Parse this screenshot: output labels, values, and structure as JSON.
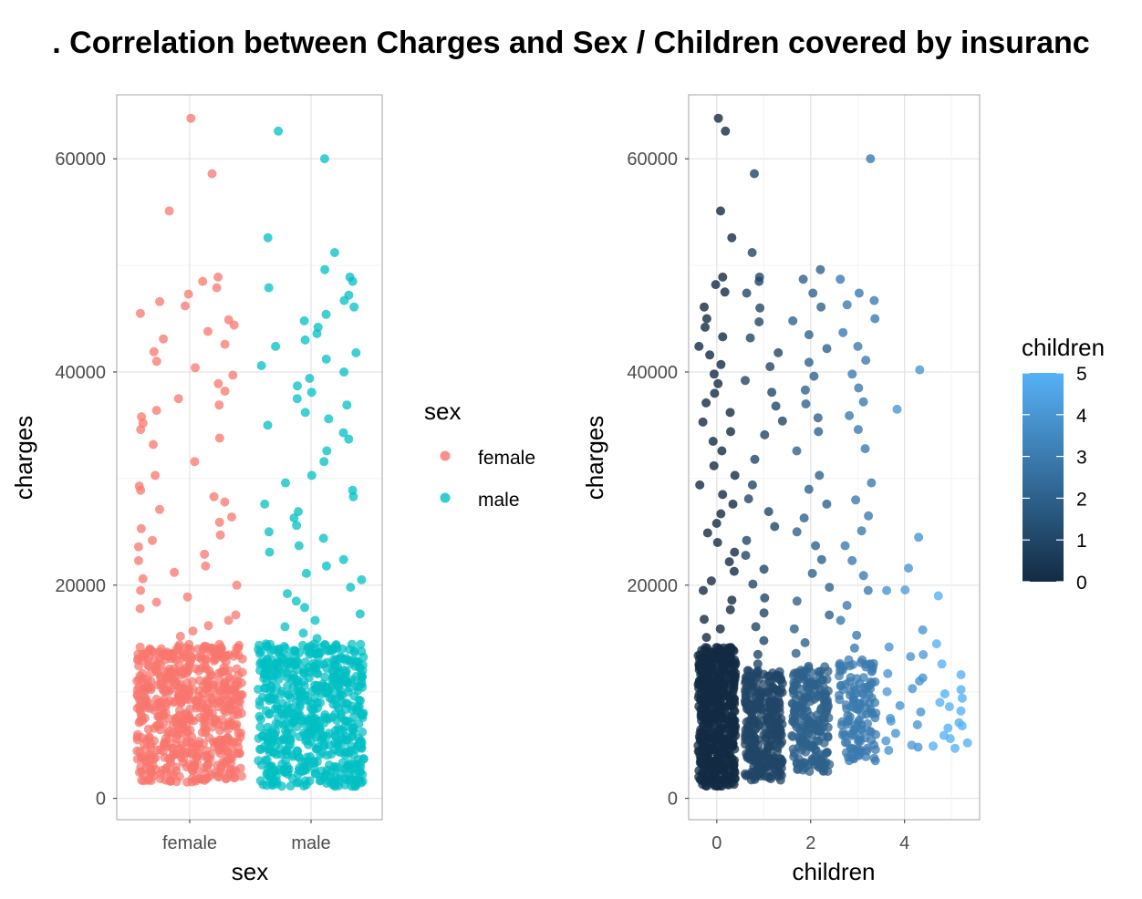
{
  "title": ". Correlation between Charges and Sex / Children covered by insuranc",
  "colors": {
    "female": "#F8766D",
    "male": "#00BFC4",
    "children_low": "#132B43",
    "children_high": "#56B1F7",
    "grid": "#EBEBEB",
    "panel_border": "#B3B3B3"
  },
  "chart_data": [
    {
      "type": "scatter",
      "jitter": true,
      "xlabel": "sex",
      "ylabel": "charges",
      "categories": [
        "female",
        "male"
      ],
      "ylim": [
        -2000,
        66000
      ],
      "y_ticks": [
        0,
        20000,
        40000,
        60000
      ],
      "y_tick_labels": [
        "0",
        "20000",
        "40000",
        "60000"
      ],
      "legend": {
        "title": "sex",
        "position": "right",
        "entries": [
          "female",
          "male"
        ]
      },
      "grid": true,
      "series": [
        {
          "name": "female",
          "color": "#F8766D",
          "count": 662,
          "dense_range": [
            1500,
            14500
          ],
          "outliers": [
            63800,
            58600,
            55100,
            48900,
            48500,
            47900,
            47300,
            46600,
            46200,
            45500,
            44900,
            44400,
            43800,
            43100,
            42600,
            41900,
            41000,
            40400,
            39700,
            38900,
            38200,
            37500,
            36900,
            36400,
            35800,
            35200,
            34600,
            33800,
            33200,
            31600,
            30300,
            29300,
            28900,
            28300,
            27800,
            27100,
            26400,
            25900,
            25300,
            24700,
            24200,
            23600,
            22900,
            22300,
            21800,
            21200,
            20600,
            20000,
            19500,
            18900,
            18400,
            17800,
            17200,
            16700,
            16200,
            15700,
            15200
          ]
        },
        {
          "name": "male",
          "color": "#00BFC4",
          "count": 676,
          "dense_range": [
            1100,
            14500
          ],
          "outliers": [
            62600,
            60000,
            52600,
            51200,
            49600,
            48900,
            48500,
            47900,
            47200,
            46700,
            46100,
            45400,
            44800,
            44200,
            43600,
            43000,
            42400,
            41800,
            41200,
            40600,
            40000,
            39400,
            38700,
            38100,
            37500,
            36900,
            36200,
            35600,
            35000,
            34300,
            33700,
            32600,
            31600,
            30300,
            29600,
            28900,
            28300,
            27600,
            26900,
            26300,
            25600,
            25000,
            24400,
            23700,
            23100,
            22400,
            21800,
            21100,
            20500,
            19800,
            19200,
            18500,
            17900,
            17300,
            16700,
            16100,
            15500,
            15000
          ]
        }
      ]
    },
    {
      "type": "scatter",
      "jitter": true,
      "xlabel": "children",
      "ylabel": "charges",
      "xlim": [
        -0.6,
        5.6
      ],
      "x_ticks": [
        0,
        2,
        4
      ],
      "x_tick_labels": [
        "0",
        "2",
        "4"
      ],
      "ylim": [
        -2000,
        66000
      ],
      "y_ticks": [
        0,
        20000,
        40000,
        60000
      ],
      "y_tick_labels": [
        "0",
        "20000",
        "40000",
        "60000"
      ],
      "legend": {
        "title": "children",
        "position": "right",
        "type": "colorbar",
        "range": [
          0,
          5
        ],
        "labels": [
          "5",
          "4",
          "3",
          "2",
          "1",
          "0"
        ]
      },
      "grid": true,
      "series": [
        {
          "children": 0,
          "count": 574,
          "dense_range": [
            1100,
            14200
          ],
          "outliers": [
            63800,
            62600,
            55100,
            52600,
            48900,
            48200,
            47500,
            46100,
            45000,
            44200,
            43300,
            42400,
            41600,
            40700,
            39800,
            38900,
            38000,
            37100,
            36200,
            35300,
            34400,
            33500,
            32600,
            31200,
            30300,
            29400,
            28500,
            27600,
            26700,
            25800,
            24900,
            24000,
            23100,
            22200,
            21300,
            20400,
            19500,
            18600,
            17700,
            16800,
            15900,
            15100
          ]
        },
        {
          "children": 1,
          "count": 324,
          "dense_range": [
            1700,
            12000
          ],
          "outliers": [
            58600,
            51200,
            48900,
            48500,
            47400,
            46000,
            44700,
            43200,
            41800,
            40500,
            39200,
            38100,
            36800,
            35400,
            34100,
            31800,
            29400,
            28100,
            26900,
            25500,
            24200,
            22800,
            21500,
            20100,
            18800,
            17400,
            16100,
            14800,
            13500,
            12600
          ]
        },
        {
          "children": 2,
          "count": 240,
          "dense_range": [
            2500,
            12500
          ],
          "outliers": [
            49600,
            48700,
            47400,
            46100,
            44800,
            43500,
            42200,
            40900,
            39600,
            38300,
            37000,
            35700,
            34400,
            32600,
            30300,
            29000,
            27600,
            26300,
            25000,
            23700,
            22400,
            21100,
            19800,
            18500,
            17200,
            15900,
            14600,
            13600
          ]
        },
        {
          "children": 3,
          "count": 157,
          "dense_range": [
            3500,
            13000
          ],
          "outliers": [
            60000,
            48700,
            47400,
            46700,
            46300,
            45000,
            43700,
            42400,
            41100,
            39800,
            38500,
            37200,
            35900,
            34600,
            32800,
            29600,
            28000,
            26500,
            25100,
            23700,
            22300,
            20900,
            19500,
            18100,
            16700,
            15300,
            14100
          ]
        },
        {
          "children": 4,
          "count": 25,
          "dense_range": [
            4400,
            21600
          ],
          "outliers": [
            40200,
            36500,
            24500,
            21600,
            19500,
            15800,
            14200,
            13300,
            11700,
            11300,
            11000,
            10300,
            8700,
            8100,
            7500,
            6900,
            6100,
            5400,
            4800,
            4500
          ]
        },
        {
          "children": 5,
          "count": 18,
          "dense_range": [
            4700,
            19200
          ],
          "outliers": [
            19000,
            14500,
            12600,
            11600,
            10200,
            9800,
            9400,
            9000,
            8600,
            8200,
            7100,
            6800,
            6600,
            5900,
            5600,
            5200,
            4900,
            4700
          ]
        }
      ]
    }
  ]
}
